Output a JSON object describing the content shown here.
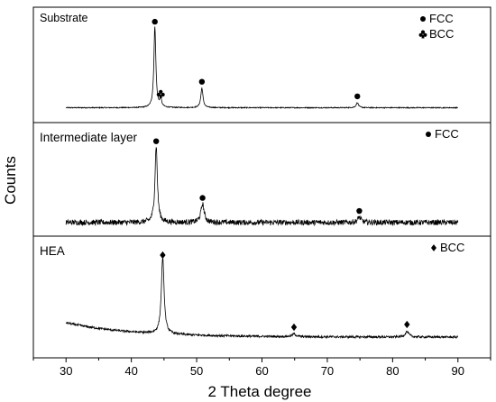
{
  "chart_data": {
    "type": "line",
    "xlabel": "2 Theta degree",
    "ylabel": "Counts",
    "xlim": [
      25,
      95
    ],
    "xticks": [
      30,
      40,
      50,
      60,
      70,
      80,
      90
    ],
    "grid": false,
    "legend": "none",
    "colors": {
      "trace": "#000000",
      "axes": "#000000",
      "background": "#ffffff"
    },
    "panels": [
      {
        "label": "Substrate",
        "legend_items": [
          {
            "symbol": "circle",
            "text": "FCC"
          },
          {
            "symbol": "club",
            "text": "BCC"
          }
        ],
        "baseline": 0.05,
        "noise": 0.006,
        "peaks": [
          {
            "x": 43.6,
            "height": 1.0,
            "width": 0.18,
            "phase": "FCC",
            "symbol": "circle"
          },
          {
            "x": 44.5,
            "height": 0.09,
            "width": 0.18,
            "phase": "BCC",
            "symbol": "club"
          },
          {
            "x": 50.8,
            "height": 0.24,
            "width": 0.2,
            "phase": "FCC",
            "symbol": "circle"
          },
          {
            "x": 74.6,
            "height": 0.06,
            "width": 0.22,
            "phase": "FCC",
            "symbol": "circle"
          }
        ]
      },
      {
        "label": "Intermediate layer",
        "legend_items": [
          {
            "symbol": "circle",
            "text": "FCC"
          }
        ],
        "baseline": 0.12,
        "noise": 0.035,
        "peaks": [
          {
            "x": 43.8,
            "height": 1.0,
            "width": 0.22,
            "phase": "FCC",
            "symbol": "circle"
          },
          {
            "x": 50.9,
            "height": 0.24,
            "width": 0.3,
            "phase": "FCC",
            "symbol": "circle"
          },
          {
            "x": 74.9,
            "height": 0.07,
            "width": 0.3,
            "phase": "FCC",
            "symbol": "circle"
          }
        ]
      },
      {
        "label": "HEA",
        "legend_items": [
          {
            "symbol": "diamond",
            "text": "BCC"
          }
        ],
        "baseline": 0.06,
        "baseline_start": 0.22,
        "noise": 0.012,
        "peaks": [
          {
            "x": 44.8,
            "height": 0.85,
            "width": 0.25,
            "phase": "BCC",
            "symbol": "diamond"
          },
          {
            "x": 64.9,
            "height": 0.03,
            "width": 0.35,
            "phase": "BCC",
            "symbol": "diamond"
          },
          {
            "x": 82.2,
            "height": 0.06,
            "width": 0.35,
            "phase": "BCC",
            "symbol": "diamond"
          }
        ]
      }
    ]
  }
}
